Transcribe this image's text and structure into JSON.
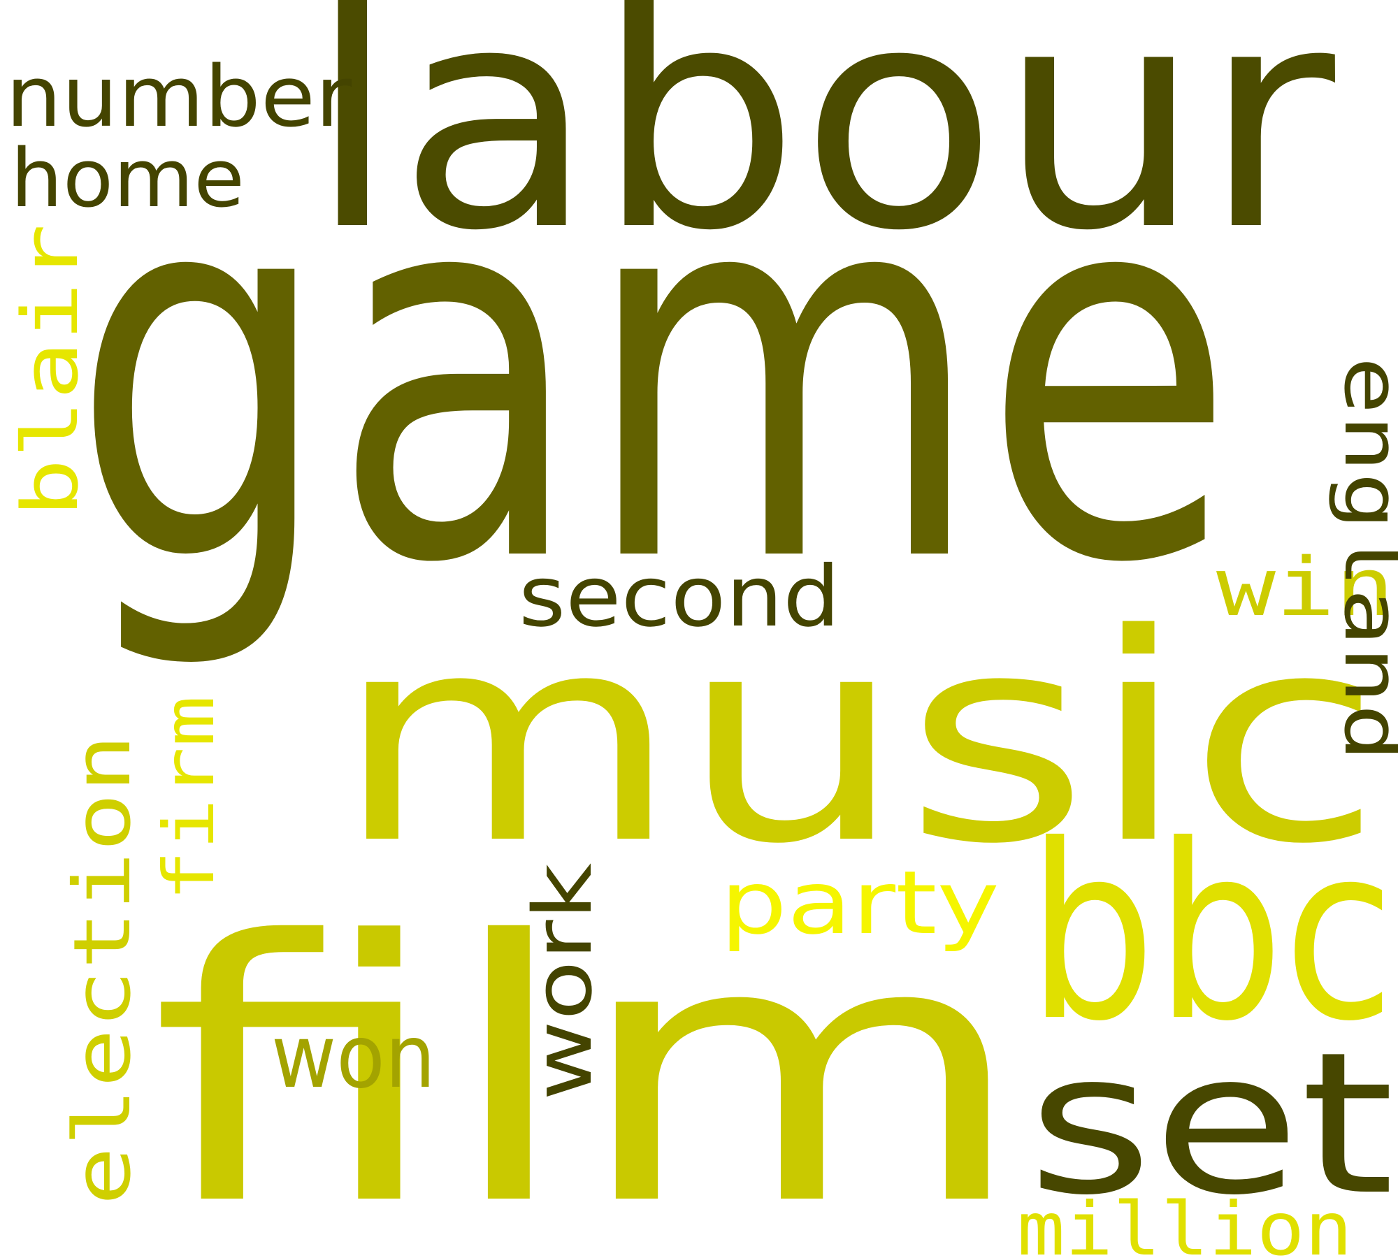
{
  "words": {
    "game": {
      "text": "game",
      "color": "#626100"
    },
    "labour": {
      "text": "labour",
      "color": "#4b4b00"
    },
    "music": {
      "text": "music",
      "color": "#cccc00"
    },
    "film": {
      "text": "film",
      "color": "#c9c900"
    },
    "bbc": {
      "text": "bbc",
      "color": "#e0e000"
    },
    "set": {
      "text": "set",
      "color": "#474700"
    },
    "number": {
      "text": "number",
      "color": "#444400"
    },
    "home": {
      "text": "home",
      "color": "#444400"
    },
    "blair": {
      "text": "blair",
      "color": "#e6e600"
    },
    "england": {
      "text": "england",
      "color": "#444400"
    },
    "win": {
      "text": "win",
      "color": "#cccc00"
    },
    "second": {
      "text": "second",
      "color": "#444400"
    },
    "election": {
      "text": "election",
      "color": "#cfcf00"
    },
    "firm": {
      "text": "firm",
      "color": "#e6e600"
    },
    "work": {
      "text": "work",
      "color": "#444400"
    },
    "party": {
      "text": "party",
      "color": "#f5f500"
    },
    "won": {
      "text": "won",
      "color": "#a3a300"
    },
    "million": {
      "text": "million",
      "color": "#e0e000"
    }
  }
}
